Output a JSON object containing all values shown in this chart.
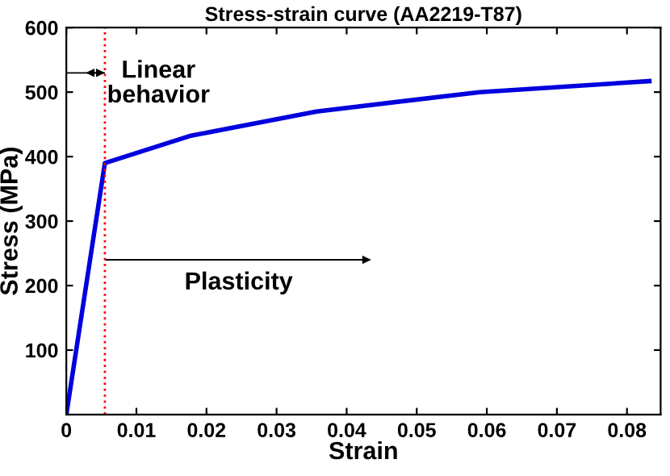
{
  "chart_data": {
    "type": "line",
    "title": "Stress-strain curve (AA2219-T87)",
    "xlabel": "Strain",
    "ylabel": "Stress (MPa)",
    "x": [
      0,
      0.0055,
      0.0176,
      0.0357,
      0.059,
      0.0832
    ],
    "series": [
      {
        "color": "#0000dd",
        "values": [
          0,
          390,
          432,
          470,
          500,
          517
        ]
      }
    ],
    "xlim": [
      0,
      0.0848
    ],
    "ylim": [
      0,
      600
    ],
    "xticks": [
      0,
      0.01,
      0.02,
      0.03,
      0.04,
      0.05,
      0.06,
      0.07,
      0.08
    ],
    "yticks": [
      100,
      200,
      300,
      400,
      500,
      600
    ],
    "ref_lines": [
      {
        "axis": "x",
        "value": 0.0055,
        "color": "#ff0000",
        "line_style": "dotted"
      }
    ],
    "annotations": [
      "Linear\nbehavior",
      "Plasticity"
    ],
    "grid": false,
    "legend": false,
    "marker": "none",
    "line_style": "solid"
  }
}
